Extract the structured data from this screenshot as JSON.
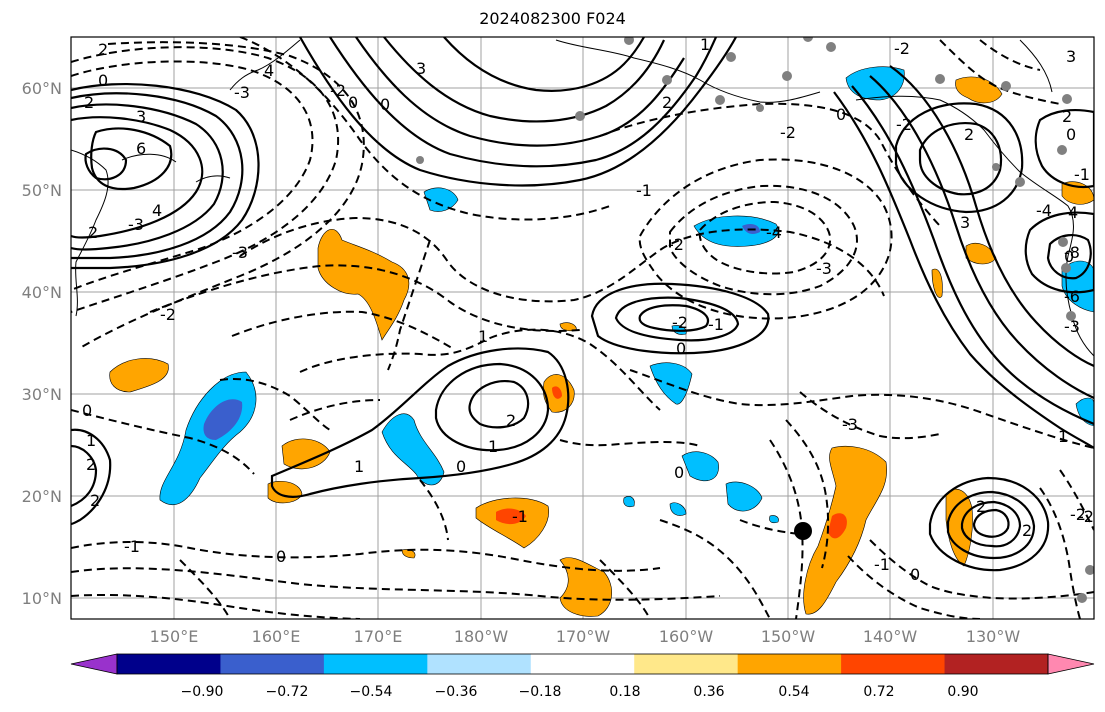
{
  "title": "2024082300 F024",
  "lat_ticks": [
    "60°N",
    "50°N",
    "40°N",
    "30°N",
    "20°N",
    "10°N"
  ],
  "lon_ticks": [
    "150°E",
    "160°E",
    "170°E",
    "180°W",
    "170°W",
    "160°W",
    "150°W",
    "140°W",
    "130°W"
  ],
  "colorbar": {
    "ticks": [
      "−0.90",
      "−0.72",
      "−0.54",
      "−0.36",
      "−0.18",
      "0.18",
      "0.36",
      "0.54",
      "0.72",
      "0.90"
    ],
    "colors": [
      "#9932cc",
      "#00008b",
      "#3a5fcd",
      "#00bfff",
      "#b0e2ff",
      "#ffffff",
      "#ffe88a",
      "#ffa500",
      "#ff4500",
      "#b22222",
      "#ff88b0"
    ]
  },
  "contour_labels": [
    "2",
    "0",
    "2",
    "3",
    "6",
    "4",
    "2",
    "4",
    "-3",
    "-2",
    "-3",
    "-2",
    "0",
    "3",
    "0",
    "2",
    "1",
    "0",
    "-1",
    "-2",
    "-3",
    "-4",
    "3",
    "2",
    "0",
    "-1",
    "-2",
    "-2",
    "1",
    "0",
    "-1",
    "-2",
    "-3",
    "2",
    "1",
    "0",
    "1",
    "1",
    "2",
    "-2",
    "0",
    "-1",
    "0",
    "-1",
    "-1",
    "0",
    "4",
    "3",
    "2",
    "0",
    "2",
    "0",
    "-4",
    "-8",
    "-6",
    "-3",
    "1",
    "2",
    "2",
    "-2",
    "-3",
    "-2"
  ],
  "land_colors": {
    "warm": "#ffa500",
    "hot": "#ff4500",
    "cold": "#00bfff",
    "cold_core": "#3a5fcd"
  }
}
